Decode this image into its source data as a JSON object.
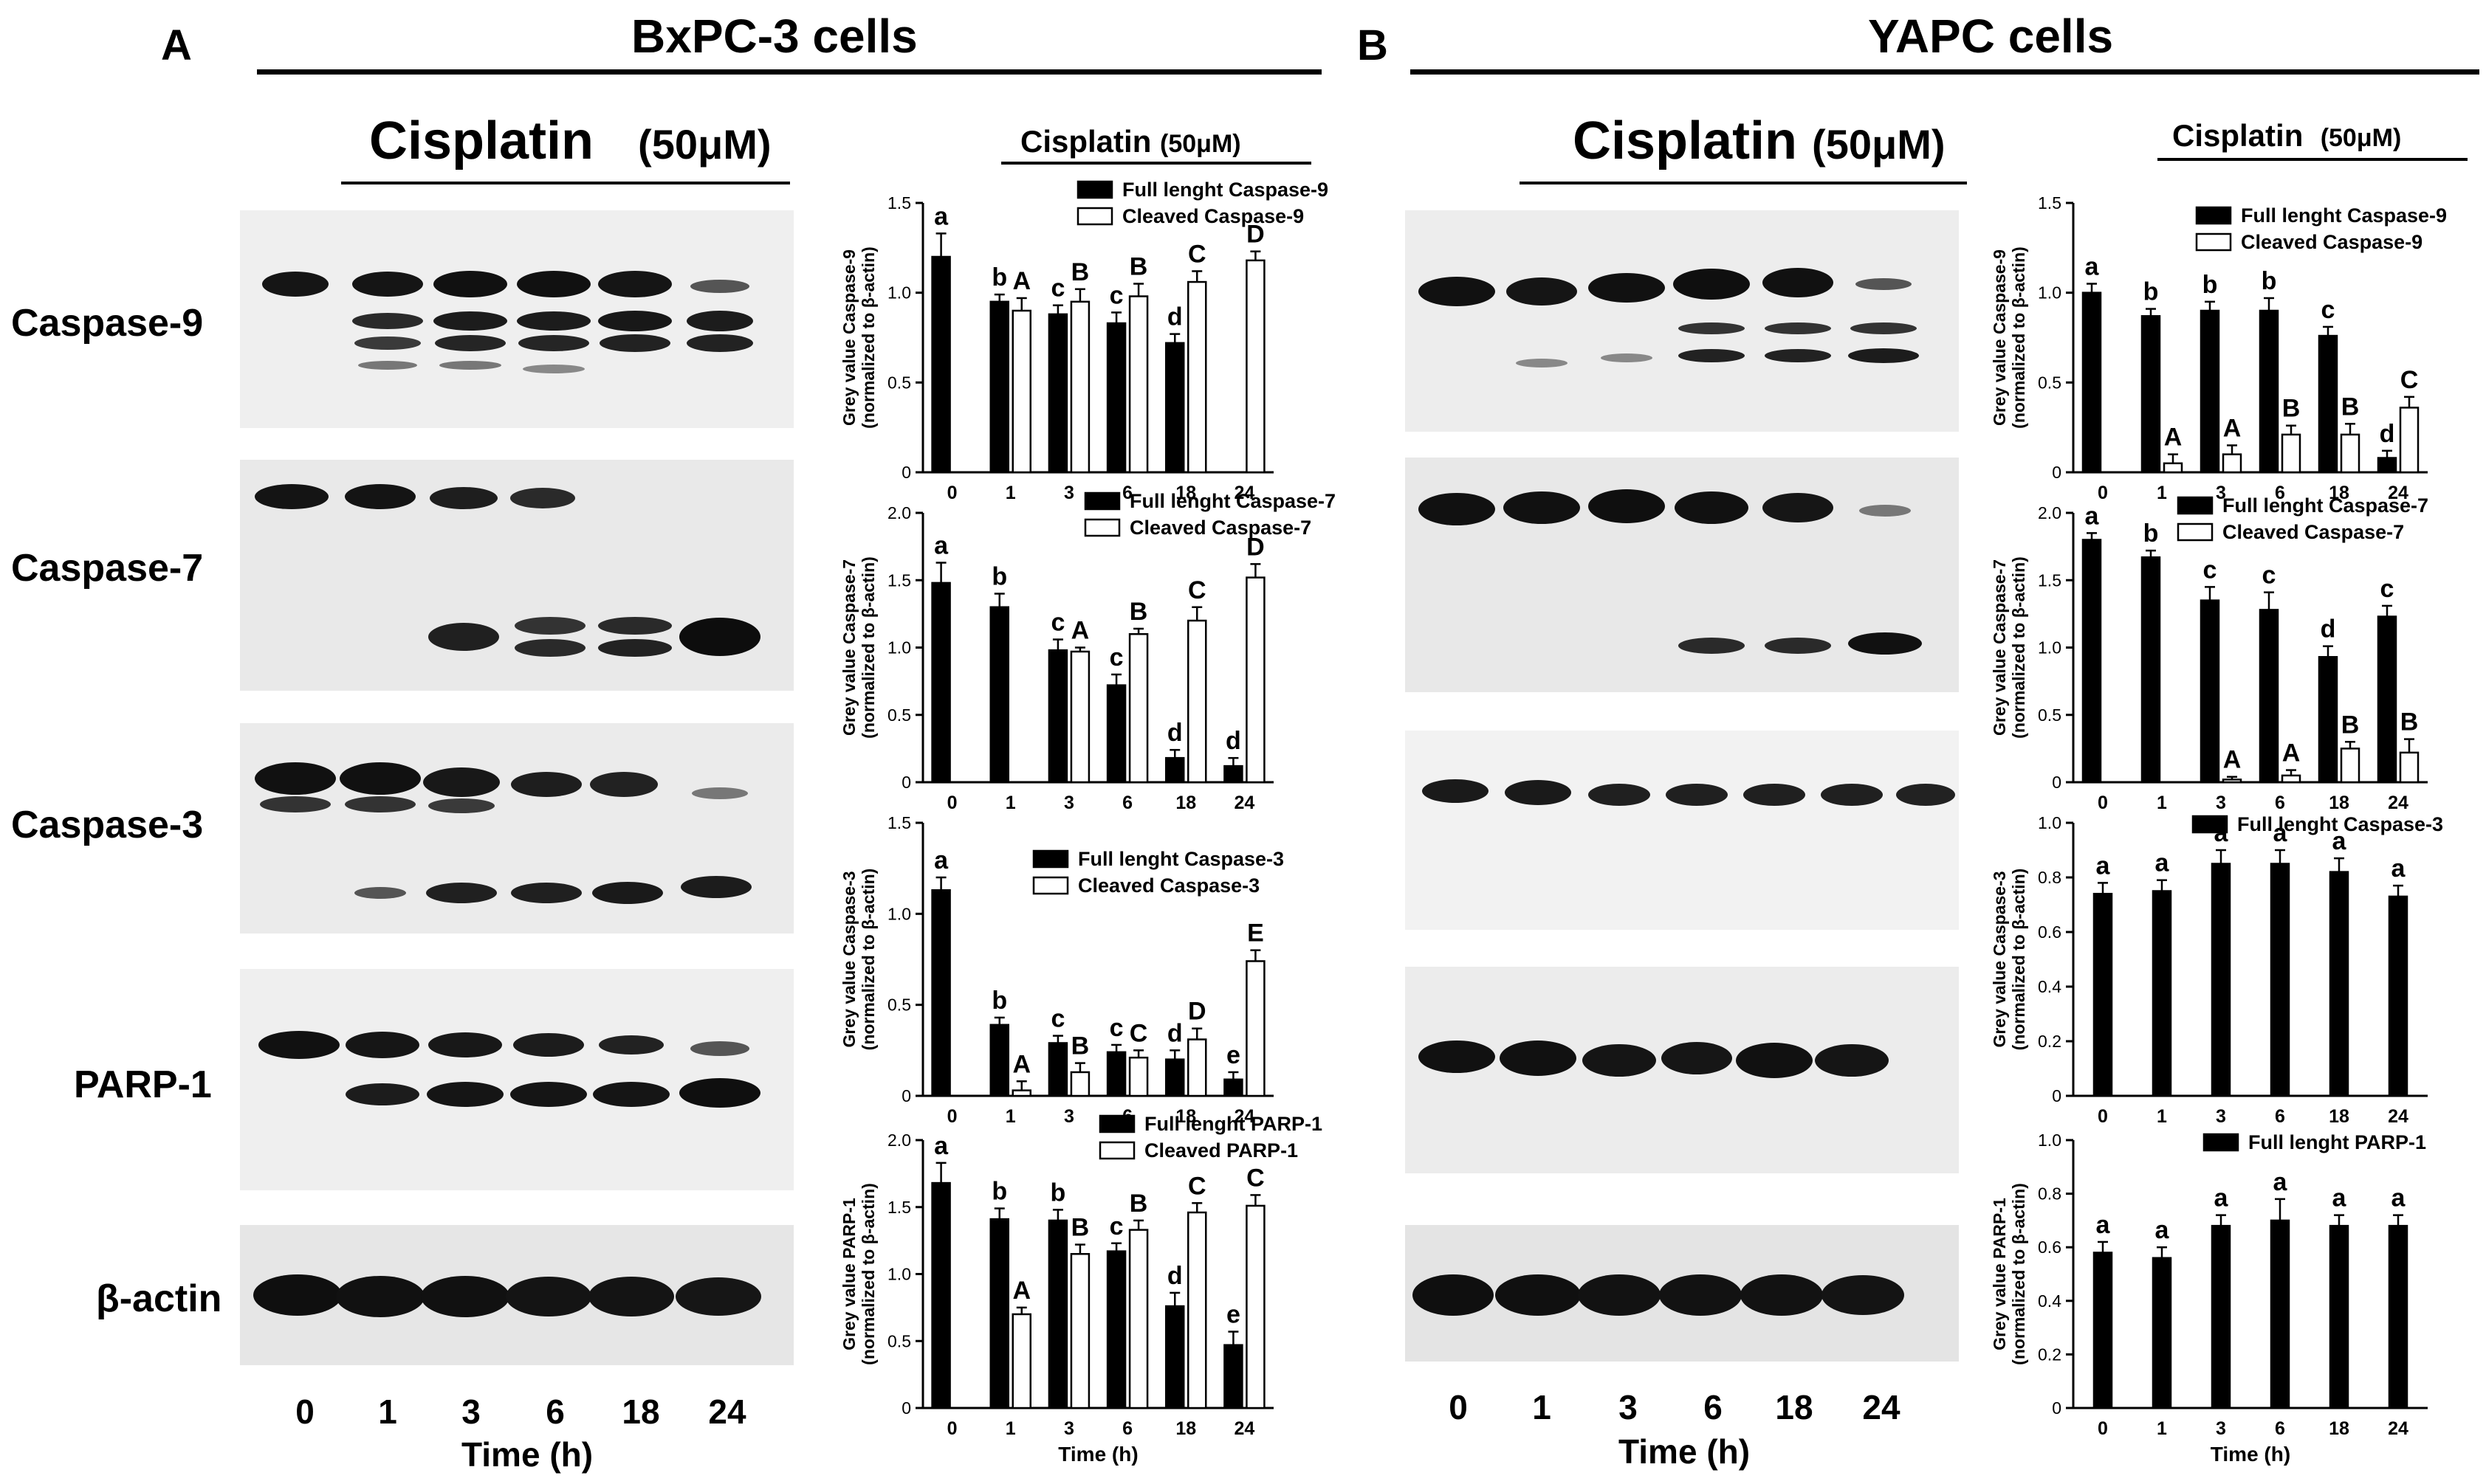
{
  "panelA": {
    "letter": "A",
    "title": "BxPC-3 cells",
    "treatment": "Cisplatin",
    "dose": "(50μM)",
    "proteins": [
      "Caspase-9",
      "Caspase-7",
      "Caspase-3",
      "PARP-1",
      "β-actin"
    ],
    "lanes": [
      "0",
      "1",
      "3",
      "6",
      "18",
      "24"
    ],
    "time_label": "Time (h)"
  },
  "panelB": {
    "letter": "B",
    "title": "YAPC cells",
    "treatment": "Cisplatin",
    "dose": "(50μM)",
    "lanes": [
      "0",
      "1",
      "3",
      "6",
      "18",
      "24"
    ],
    "time_label": "Time (h)"
  },
  "chart_data": [
    {
      "type": "bar",
      "panel": "A",
      "categories": [
        "0",
        "1",
        "3",
        "6",
        "18",
        "24"
      ],
      "series": [
        {
          "name": "Full lenght Caspase-9",
          "values": [
            1.2,
            0.95,
            0.88,
            0.83,
            0.72,
            null
          ],
          "errors": [
            0.13,
            0.04,
            0.05,
            0.06,
            0.05,
            null
          ],
          "letters": [
            "a",
            "b",
            "c",
            "c",
            "d",
            ""
          ]
        },
        {
          "name": "Cleaved Caspase-9",
          "values": [
            null,
            0.9,
            0.95,
            0.98,
            1.06,
            1.18
          ],
          "errors": [
            null,
            0.07,
            0.07,
            0.07,
            0.06,
            0.05
          ],
          "letters": [
            "",
            "A",
            "B",
            "B",
            "C",
            "D"
          ]
        }
      ],
      "ylabel": "Grey value Caspase-9 (normalized to β-actin)",
      "ylim": [
        0,
        1.5
      ],
      "yticks": [
        "0",
        "0.5",
        "1.0",
        "1.5"
      ]
    },
    {
      "type": "bar",
      "panel": "A",
      "categories": [
        "0",
        "1",
        "3",
        "6",
        "18",
        "24"
      ],
      "series": [
        {
          "name": "Full lenght Caspase-7",
          "values": [
            1.48,
            1.3,
            0.98,
            0.72,
            0.18,
            0.12
          ],
          "errors": [
            0.15,
            0.1,
            0.08,
            0.08,
            0.06,
            0.06
          ],
          "letters": [
            "a",
            "b",
            "c",
            "c",
            "d",
            "d"
          ]
        },
        {
          "name": "Cleaved Caspase-7",
          "values": [
            null,
            null,
            0.97,
            1.1,
            1.2,
            1.52
          ],
          "errors": [
            null,
            null,
            0.03,
            0.04,
            0.1,
            0.1
          ],
          "letters": [
            "",
            "",
            "A",
            "B",
            "C",
            "D"
          ]
        }
      ],
      "ylabel": "Grey value Caspase-7 (normalized to β-actin)",
      "ylim": [
        0,
        2.0
      ],
      "yticks": [
        "0",
        "0.5",
        "1.0",
        "1.5",
        "2.0"
      ]
    },
    {
      "type": "bar",
      "panel": "A",
      "categories": [
        "0",
        "1",
        "3",
        "6",
        "18",
        "24"
      ],
      "series": [
        {
          "name": "Full lenght Caspase-3",
          "values": [
            1.13,
            0.39,
            0.29,
            0.24,
            0.2,
            0.09
          ],
          "errors": [
            0.07,
            0.04,
            0.04,
            0.04,
            0.05,
            0.04
          ],
          "letters": [
            "a",
            "b",
            "c",
            "c",
            "d",
            "e"
          ]
        },
        {
          "name": "Cleaved Caspase-3",
          "values": [
            null,
            0.03,
            0.13,
            0.21,
            0.31,
            0.74
          ],
          "errors": [
            null,
            0.05,
            0.05,
            0.04,
            0.06,
            0.06
          ],
          "letters": [
            "",
            "A",
            "B",
            "C",
            "D",
            "E"
          ]
        }
      ],
      "ylabel": "Grey value Caspase-3 (normalized to β-actin)",
      "ylim": [
        0,
        1.5
      ],
      "yticks": [
        "0",
        "0.5",
        "1.0",
        "1.5"
      ]
    },
    {
      "type": "bar",
      "panel": "A",
      "categories": [
        "0",
        "1",
        "3",
        "6",
        "18",
        "24"
      ],
      "series": [
        {
          "name": "Full lenght PARP-1",
          "values": [
            1.68,
            1.41,
            1.4,
            1.17,
            0.76,
            0.47
          ],
          "errors": [
            0.15,
            0.08,
            0.08,
            0.06,
            0.1,
            0.1
          ],
          "letters": [
            "a",
            "b",
            "b",
            "c",
            "d",
            "e"
          ]
        },
        {
          "name": "Cleaved PARP-1",
          "values": [
            null,
            0.7,
            1.15,
            1.33,
            1.46,
            1.51
          ],
          "errors": [
            null,
            0.05,
            0.07,
            0.07,
            0.07,
            0.08
          ],
          "letters": [
            "",
            "A",
            "B",
            "B",
            "C",
            "C"
          ]
        }
      ],
      "xlabel": "Time (h)",
      "ylabel": "Grey value PARP-1 (normalized to β-actin)",
      "ylim": [
        0,
        2.0
      ],
      "yticks": [
        "0",
        "0.5",
        "1.0",
        "1.5",
        "2.0"
      ]
    },
    {
      "type": "bar",
      "panel": "B",
      "categories": [
        "0",
        "1",
        "3",
        "6",
        "18",
        "24"
      ],
      "series": [
        {
          "name": "Full lenght Caspase-9",
          "values": [
            1.0,
            0.87,
            0.9,
            0.9,
            0.76,
            0.08
          ],
          "errors": [
            0.05,
            0.04,
            0.05,
            0.07,
            0.05,
            0.04
          ],
          "letters": [
            "a",
            "b",
            "b",
            "b",
            "c",
            "d"
          ]
        },
        {
          "name": "Cleaved Caspase-9",
          "values": [
            null,
            0.05,
            0.1,
            0.21,
            0.21,
            0.36
          ],
          "errors": [
            null,
            0.05,
            0.05,
            0.05,
            0.06,
            0.06
          ],
          "letters": [
            "",
            "A",
            "A",
            "B",
            "B",
            "C"
          ]
        }
      ],
      "ylabel": "Grey value Caspase-9 (normalized to β-actin)",
      "ylim": [
        0,
        1.5
      ],
      "yticks": [
        "0",
        "0.5",
        "1.0",
        "1.5"
      ]
    },
    {
      "type": "bar",
      "panel": "B",
      "categories": [
        "0",
        "1",
        "3",
        "6",
        "18",
        "24"
      ],
      "series": [
        {
          "name": "Full lenght Caspase-7",
          "values": [
            1.8,
            1.67,
            1.35,
            1.28,
            0.93,
            1.23
          ],
          "errors": [
            0.05,
            0.05,
            0.1,
            0.13,
            0.08,
            0.08
          ],
          "letters": [
            "a",
            "b",
            "c",
            "c",
            "d",
            "c"
          ]
        },
        {
          "name": "Cleaved Caspase-7",
          "values": [
            null,
            null,
            0.02,
            0.05,
            0.25,
            0.22
          ],
          "errors": [
            null,
            null,
            0.02,
            0.04,
            0.05,
            0.1
          ],
          "letters": [
            "",
            "",
            "A",
            "A",
            "B",
            "B"
          ]
        }
      ],
      "ylabel": "Grey value Caspase-7 (normalized to β-actin)",
      "ylim": [
        0,
        2.0
      ],
      "yticks": [
        "0",
        "0.5",
        "1.0",
        "1.5",
        "2.0"
      ]
    },
    {
      "type": "bar",
      "panel": "B",
      "categories": [
        "0",
        "1",
        "3",
        "6",
        "18",
        "24"
      ],
      "series": [
        {
          "name": "Full lenght Caspase-3",
          "values": [
            0.74,
            0.75,
            0.85,
            0.85,
            0.82,
            0.73
          ],
          "errors": [
            0.04,
            0.04,
            0.05,
            0.05,
            0.05,
            0.04
          ],
          "letters": [
            "a",
            "a",
            "a",
            "a",
            "a",
            "a"
          ]
        }
      ],
      "ylabel": "Grey value Caspase-3 (normalized to β-actin)",
      "ylim": [
        0,
        1.0
      ],
      "yticks": [
        "0",
        "0.2",
        "0.4",
        "0.6",
        "0.8",
        "1.0"
      ]
    },
    {
      "type": "bar",
      "panel": "B",
      "categories": [
        "0",
        "1",
        "3",
        "6",
        "18",
        "24"
      ],
      "series": [
        {
          "name": "Full lenght PARP-1",
          "values": [
            0.58,
            0.56,
            0.68,
            0.7,
            0.68,
            0.68
          ],
          "errors": [
            0.04,
            0.04,
            0.04,
            0.08,
            0.04,
            0.04
          ],
          "letters": [
            "a",
            "a",
            "a",
            "a",
            "a",
            "a"
          ]
        }
      ],
      "xlabel": "Time (h)",
      "ylabel": "Grey value PARP-1 (normalized to β-actin)",
      "ylim": [
        0,
        1.0
      ],
      "yticks": [
        "0",
        "0.2",
        "0.4",
        "0.6",
        "0.8",
        "1.0"
      ]
    }
  ]
}
